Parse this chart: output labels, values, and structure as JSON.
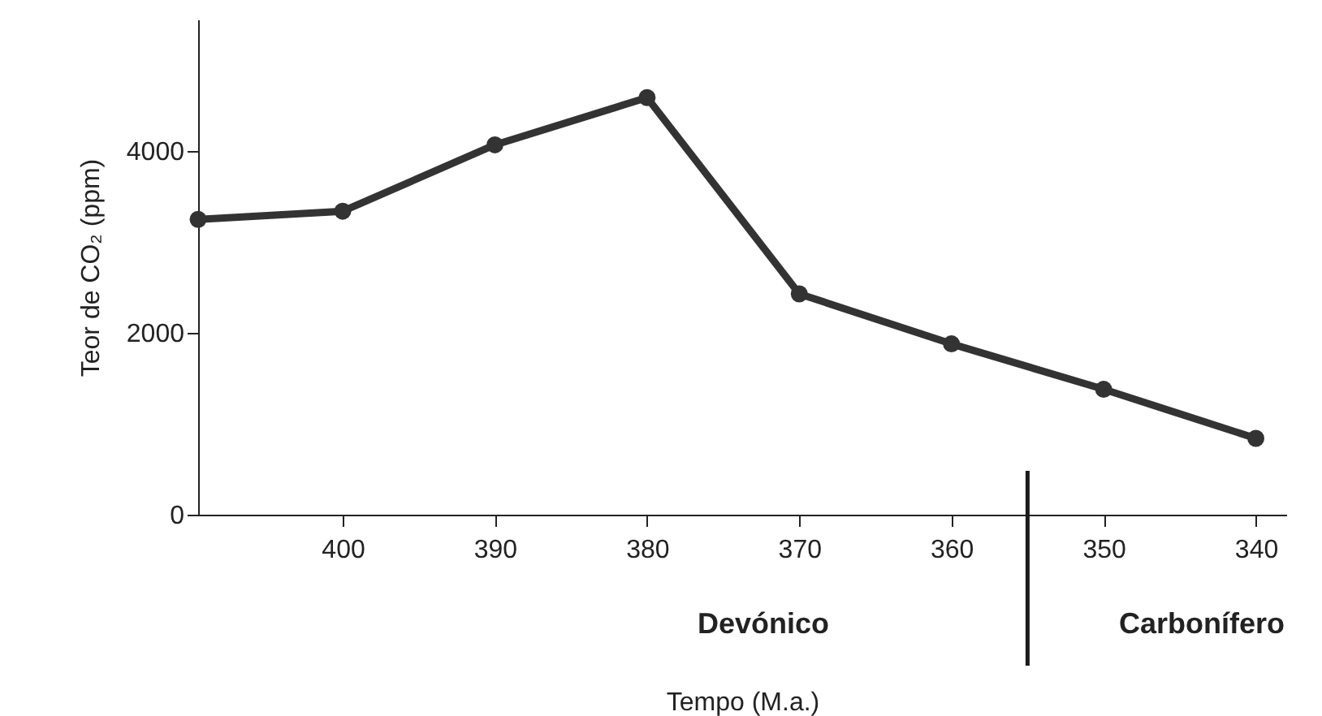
{
  "chart_data": {
    "type": "line",
    "xlabel": "Tempo (M.a.)",
    "ylabel": "Teor de CO₂ (ppm)",
    "x": [
      409.5,
      400,
      390,
      380,
      370,
      360,
      350,
      340
    ],
    "series": [
      {
        "color": "#333333",
        "values": [
          3250,
          3340,
          4070,
          4590,
          2430,
          1880,
          1380,
          840
        ]
      }
    ],
    "xlim": [
      409.5,
      338
    ],
    "xticks": [
      400,
      390,
      380,
      370,
      360,
      350,
      340
    ],
    "ylim": [
      0,
      5450
    ],
    "yticks": [
      0,
      2000,
      4000
    ],
    "grid": false,
    "marker": "circle",
    "line_style": "solid",
    "ref_lines": [
      {
        "axis": "x",
        "value": 355,
        "color": "#1a1a1a"
      }
    ],
    "annotations": [
      "Devónico",
      "Carbonífero"
    ]
  }
}
